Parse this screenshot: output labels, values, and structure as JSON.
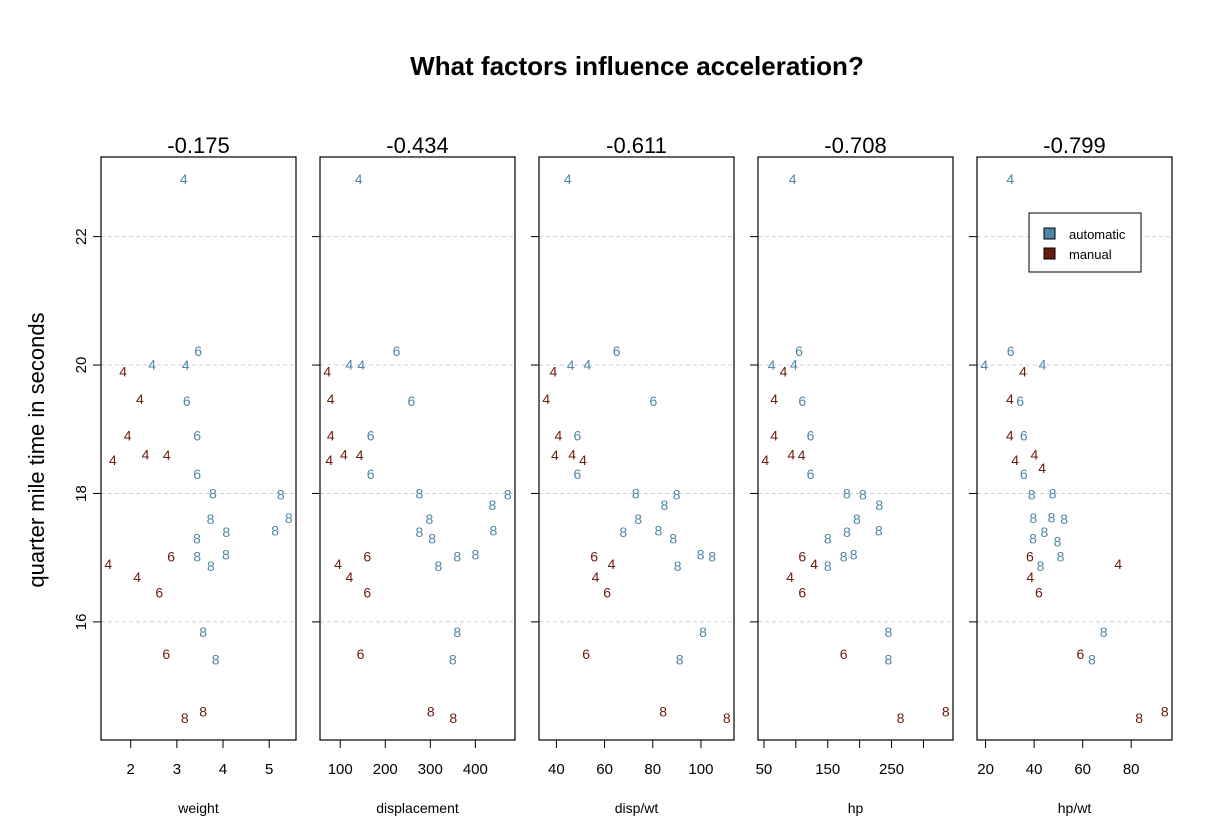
{
  "chart_data": {
    "type": "scatter",
    "title": "What factors influence acceleration?",
    "ylabel": "quarter mile time in seconds",
    "ylim": [
      14.16,
      23.24
    ],
    "yticks": [
      16,
      18,
      20,
      22
    ],
    "grid": "horizontal dashed",
    "point_label": "cyl",
    "colors": {
      "automatic": "#4f87a6",
      "manual": "#6b1b0f"
    },
    "legend": {
      "position": "top-right of last panel",
      "entries": [
        "automatic",
        "manual"
      ]
    },
    "panels": [
      {
        "xlabel": "weight",
        "x": "wt",
        "title": "-0.175",
        "ticks": [
          2,
          3,
          4,
          5
        ],
        "labels": [
          "2",
          "3",
          "4",
          "5"
        ]
      },
      {
        "xlabel": "displacement",
        "x": "disp",
        "title": "-0.434",
        "ticks": [
          100,
          200,
          300,
          400
        ],
        "labels": [
          "100",
          "200",
          "300",
          "400"
        ]
      },
      {
        "xlabel": "disp/wt",
        "x": "disp/wt",
        "title": "-0.611",
        "ticks": [
          40,
          60,
          80,
          100
        ],
        "labels": [
          "40",
          "60",
          "80",
          "100"
        ]
      },
      {
        "xlabel": "hp",
        "x": "hp",
        "title": "-0.708",
        "ticks": [
          50,
          100,
          150,
          200,
          250,
          300
        ],
        "labels": [
          "50",
          "",
          "150",
          "",
          "250",
          ""
        ]
      },
      {
        "xlabel": "hp/wt",
        "x": "hp/wt",
        "title": "-0.799",
        "ticks": [
          20,
          40,
          60,
          80
        ],
        "labels": [
          "20",
          "40",
          "60",
          "80"
        ]
      }
    ],
    "points": [
      {
        "cyl": 6,
        "disp": 160,
        "hp": 110,
        "wt": 2.62,
        "qsec": 16.46,
        "am": "manual"
      },
      {
        "cyl": 6,
        "disp": 160,
        "hp": 110,
        "wt": 2.875,
        "qsec": 17.02,
        "am": "manual"
      },
      {
        "cyl": 4,
        "disp": 108,
        "hp": 93,
        "wt": 2.32,
        "qsec": 18.61,
        "am": "manual"
      },
      {
        "cyl": 6,
        "disp": 258,
        "hp": 110,
        "wt": 3.215,
        "qsec": 19.44,
        "am": "automatic"
      },
      {
        "cyl": 8,
        "disp": 360,
        "hp": 175,
        "wt": 3.44,
        "qsec": 17.02,
        "am": "automatic"
      },
      {
        "cyl": 6,
        "disp": 225,
        "hp": 105,
        "wt": 3.46,
        "qsec": 20.22,
        "am": "automatic"
      },
      {
        "cyl": 8,
        "disp": 360,
        "hp": 245,
        "wt": 3.57,
        "qsec": 15.84,
        "am": "automatic"
      },
      {
        "cyl": 4,
        "disp": 146.7,
        "hp": 62,
        "wt": 3.19,
        "qsec": 20.0,
        "am": "automatic"
      },
      {
        "cyl": 4,
        "disp": 140.8,
        "hp": 95,
        "wt": 3.15,
        "qsec": 22.9,
        "am": "automatic"
      },
      {
        "cyl": 6,
        "disp": 167.6,
        "hp": 123,
        "wt": 3.44,
        "qsec": 18.3,
        "am": "automatic"
      },
      {
        "cyl": 6,
        "disp": 167.6,
        "hp": 123,
        "wt": 3.44,
        "qsec": 18.9,
        "am": "automatic"
      },
      {
        "cyl": 8,
        "disp": 275.8,
        "hp": 180,
        "wt": 4.07,
        "qsec": 17.4,
        "am": "automatic"
      },
      {
        "cyl": 8,
        "disp": 275.8,
        "hp": 180,
        "wt": 3.73,
        "qsec": 17.6,
        "am": "automatic"
      },
      {
        "cyl": 8,
        "disp": 275.8,
        "hp": 180,
        "wt": 3.78,
        "qsec": 18.0,
        "am": "automatic"
      },
      {
        "cyl": 8,
        "disp": 472,
        "hp": 205,
        "wt": 5.25,
        "qsec": 17.98,
        "am": "automatic"
      },
      {
        "cyl": 8,
        "disp": 460,
        "hp": 215,
        "wt": 5.424,
        "qsec": 17.82,
        "am": "automatic"
      },
      {
        "cyl": 8,
        "disp": 440,
        "hp": 230,
        "wt": 5.345,
        "qsec": 17.42,
        "am": "automatic"
      },
      {
        "cyl": 4,
        "disp": 78.7,
        "hp": 66,
        "wt": 2.2,
        "qsec": 19.47,
        "am": "manual"
      },
      {
        "cyl": 4,
        "disp": 75.7,
        "hp": 52,
        "wt": 1.615,
        "qsec": 18.52,
        "am": "manual"
      },
      {
        "cyl": 4,
        "disp": 71.1,
        "hp": 65,
        "wt": 1.835,
        "qsec": 19.9,
        "am": "manual"
      },
      {
        "cyl": 4,
        "disp": 120.1,
        "hp": 97,
        "wt": 2.465,
        "qsec": 20.01,
        "am": "automatic"
      },
      {
        "cyl": 8,
        "disp": 318,
        "hp": 150,
        "wt": 3.52,
        "qsec": 16.87,
        "am": "automatic"
      },
      {
        "cyl": 8,
        "disp": 304,
        "hp": 150,
        "wt": 3.435,
        "qsec": 17.3,
        "am": "automatic"
      },
      {
        "cyl": 8,
        "disp": 350,
        "hp": 245,
        "wt": 3.84,
        "qsec": 15.41,
        "am": "automatic"
      },
      {
        "cyl": 8,
        "disp": 400,
        "hp": 175,
        "wt": 3.845,
        "qsec": 17.05,
        "am": "automatic"
      },
      {
        "cyl": 4,
        "disp": 79,
        "hp": 66,
        "wt": 1.935,
        "qsec": 18.9,
        "am": "manual"
      },
      {
        "cyl": 4,
        "disp": 120.3,
        "hp": 91,
        "wt": 2.14,
        "qsec": 16.7,
        "am": "manual"
      },
      {
        "cyl": 4,
        "disp": 95.1,
        "hp": 113,
        "wt": 1.513,
        "qsec": 16.9,
        "am": "manual"
      },
      {
        "cyl": 8,
        "disp": 351,
        "hp": 264,
        "wt": 3.17,
        "qsec": 14.5,
        "am": "manual"
      },
      {
        "cyl": 6,
        "disp": 145,
        "hp": 175,
        "wt": 2.77,
        "qsec": 15.5,
        "am": "manual"
      },
      {
        "cyl": 8,
        "disp": 301,
        "hp": 335,
        "wt": 3.57,
        "qsec": 14.6,
        "am": "manual"
      },
      {
        "cyl": 4,
        "disp": 121,
        "hp": 109,
        "wt": 2.78,
        "qsec": 18.6,
        "am": "manual"
      }
    ]
  }
}
